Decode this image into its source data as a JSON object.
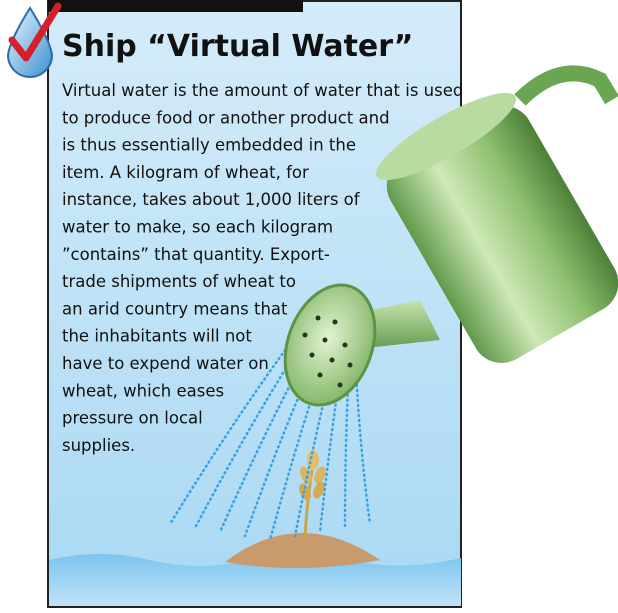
{
  "header": {
    "title": "Ship “Virtual Water”"
  },
  "body": {
    "lines": [
      "Virtual water is the amount of water that is used",
      "to produce food or another product and",
      "is thus essentially embedded in the",
      "item. A kilogram of wheat, for",
      "instance, takes about 1,000 liters of",
      "water to make, so each kilogram",
      "”contains” that quantity. Export-",
      "trade shipments of wheat to",
      "an arid country means that",
      "the inhabitants will not",
      "have to expend water on",
      "wheat, which eases",
      "pressure on local",
      "supplies."
    ]
  }
}
